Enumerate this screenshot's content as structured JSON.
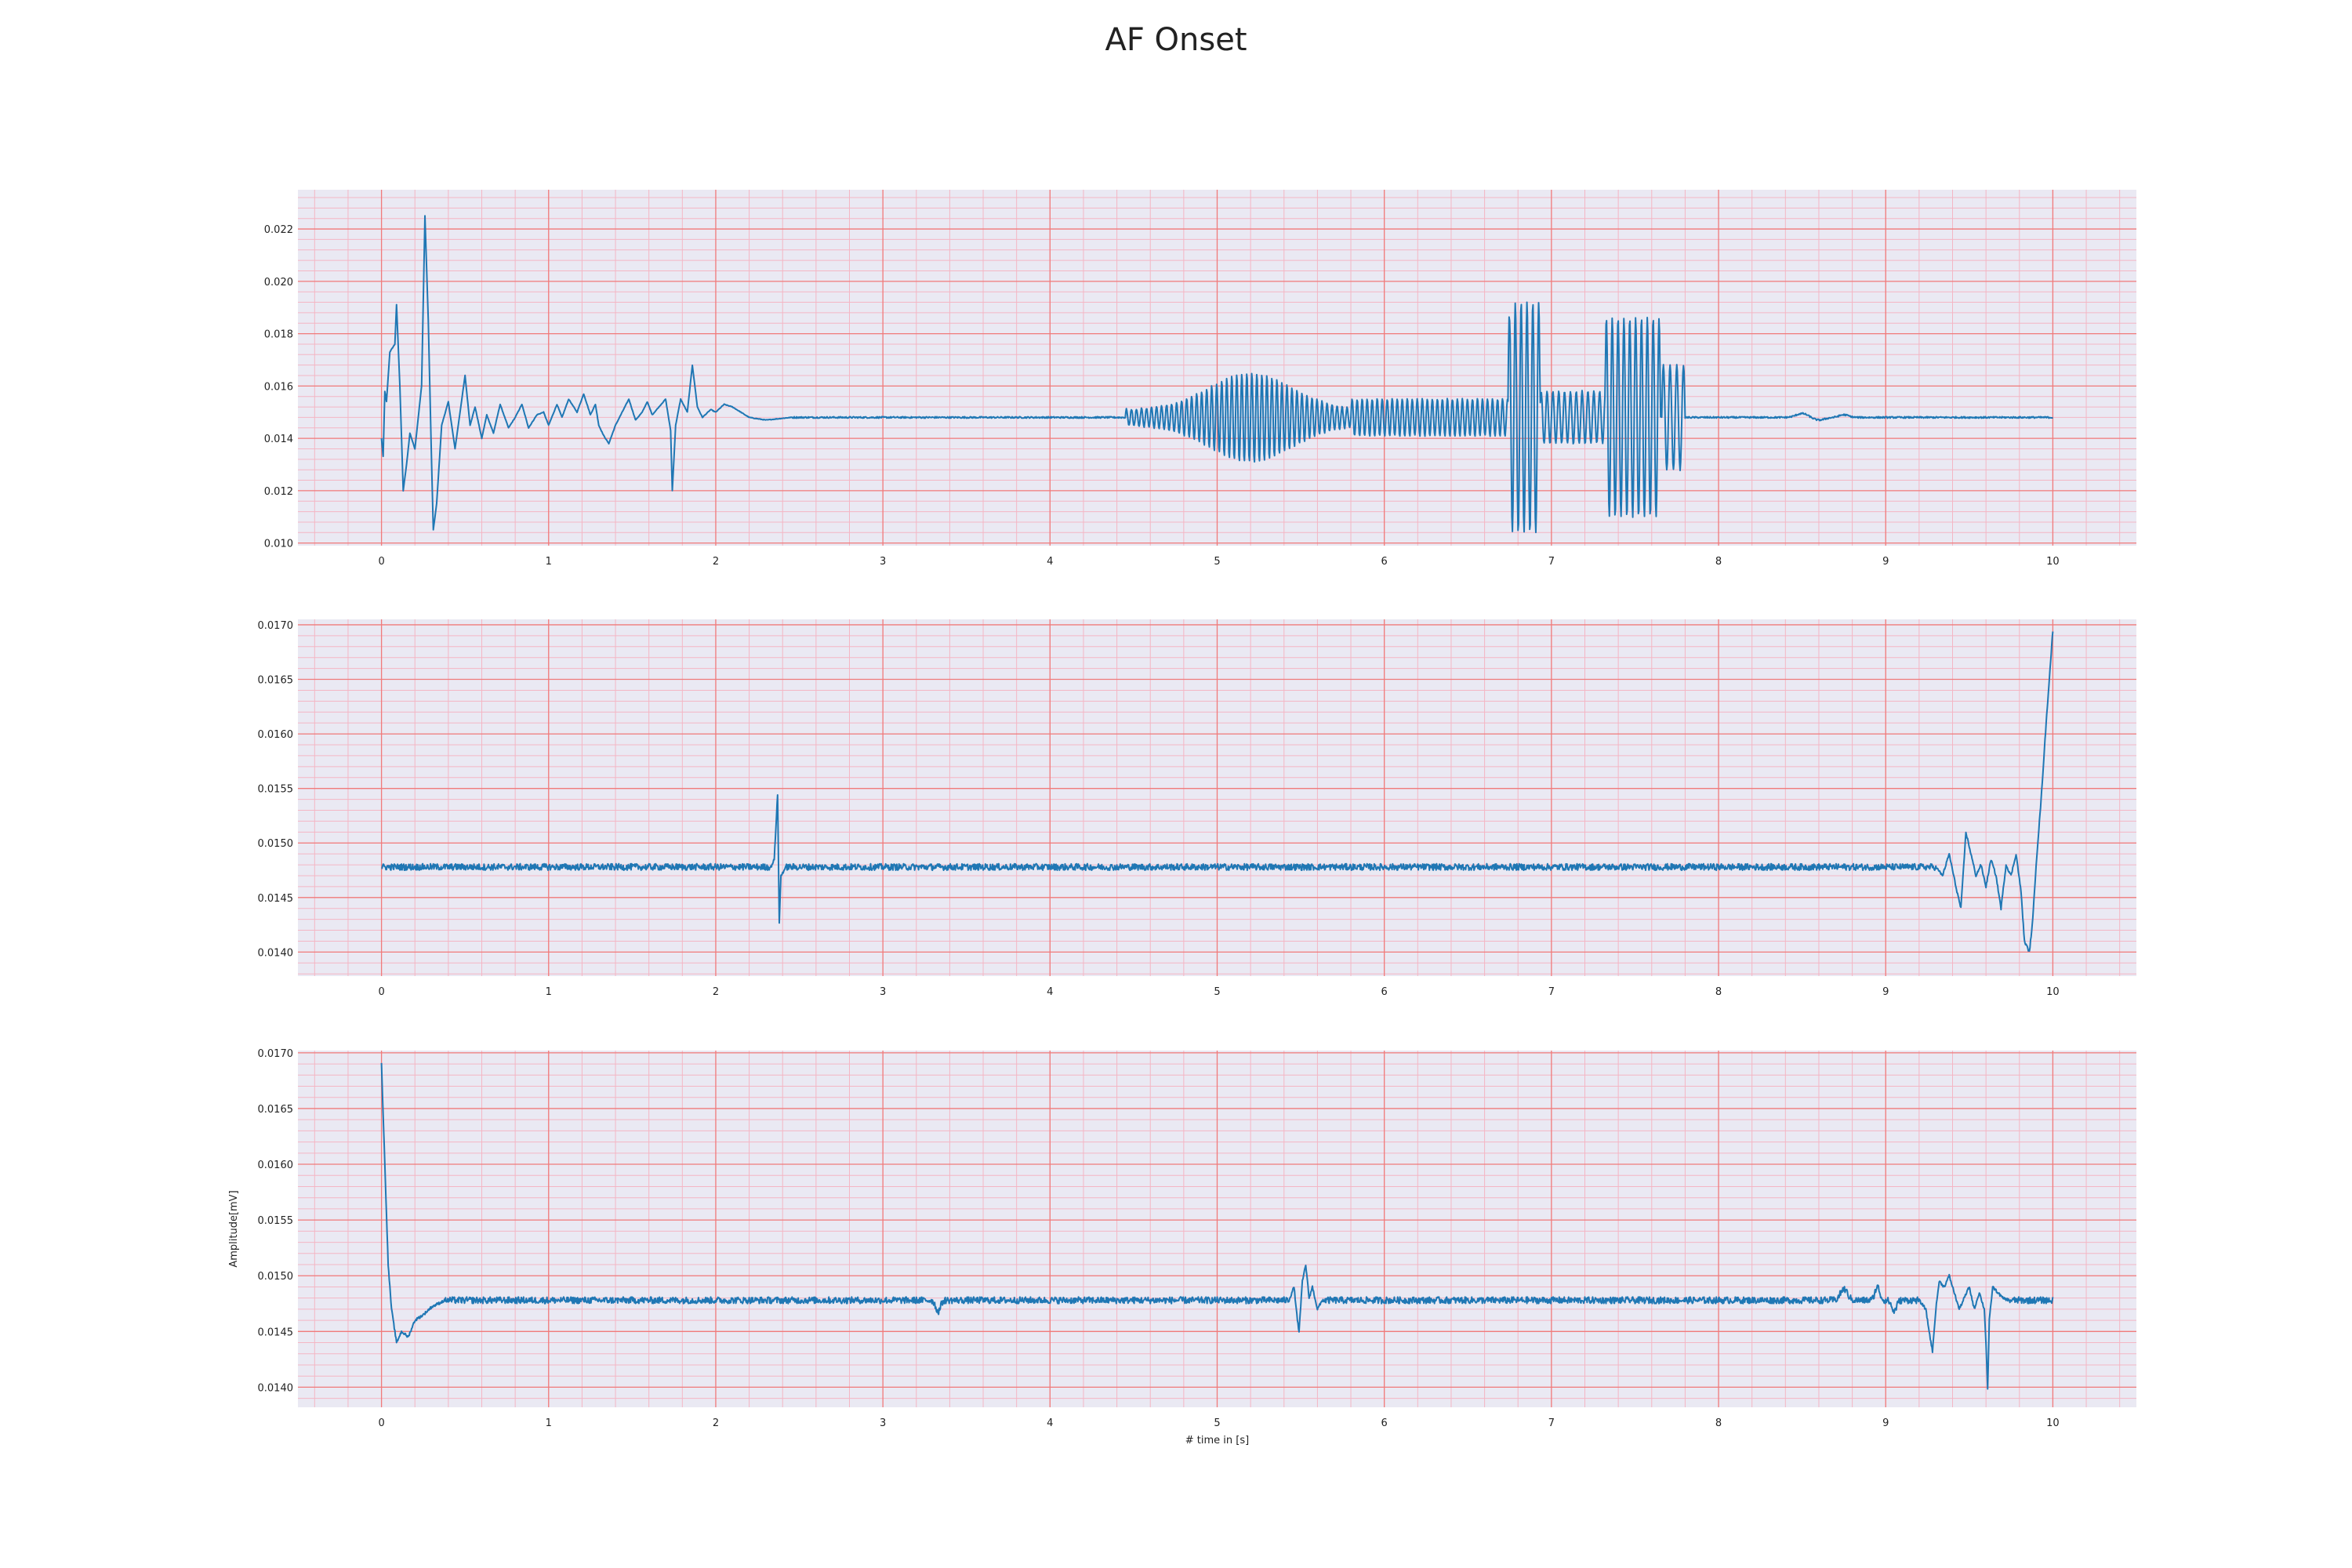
{
  "figure": {
    "title": "AF Onset"
  },
  "colors": {
    "background": "#eae9f3",
    "major_grid": "#f07b7b",
    "minor_grid": "#f4b6c4",
    "line": "#1f77b4"
  },
  "chart_data": [
    {
      "type": "line",
      "xlabel": "",
      "ylabel": "",
      "xlim": [
        -0.5,
        10.5
      ],
      "ylim": [
        0.0099,
        0.0235
      ],
      "xticks": [
        "0",
        "1",
        "2",
        "3",
        "4",
        "5",
        "6",
        "7",
        "8",
        "9",
        "10"
      ],
      "yticks": [
        "0.010",
        "0.012",
        "0.014",
        "0.016",
        "0.018",
        "0.020",
        "0.022"
      ],
      "grid": true,
      "baseline": 0.0148,
      "noise": 3e-05,
      "x_end": 10,
      "events": [
        {
          "k": "pts",
          "pts": [
            [
              0,
              0.014
            ],
            [
              0.01,
              0.0133
            ],
            [
              0.02,
              0.0158
            ],
            [
              0.03,
              0.0154
            ],
            [
              0.05,
              0.0173
            ],
            [
              0.08,
              0.0176
            ],
            [
              0.09,
              0.0191
            ],
            [
              0.11,
              0.016
            ],
            [
              0.13,
              0.012
            ],
            [
              0.15,
              0.013
            ],
            [
              0.17,
              0.0142
            ],
            [
              0.2,
              0.0136
            ],
            [
              0.24,
              0.016
            ],
            [
              0.26,
              0.0225
            ],
            [
              0.28,
              0.0185
            ],
            [
              0.3,
              0.013
            ],
            [
              0.31,
              0.0105
            ],
            [
              0.33,
              0.0115
            ],
            [
              0.36,
              0.0145
            ],
            [
              0.4,
              0.0154
            ],
            [
              0.44,
              0.0136
            ],
            [
              0.47,
              0.015
            ],
            [
              0.5,
              0.0164
            ],
            [
              0.53,
              0.0145
            ],
            [
              0.56,
              0.0152
            ],
            [
              0.6,
              0.014
            ],
            [
              0.63,
              0.0149
            ],
            [
              0.67,
              0.0142
            ],
            [
              0.71,
              0.0153
            ],
            [
              0.76,
              0.0144
            ],
            [
              0.8,
              0.0148
            ],
            [
              0.84,
              0.0153
            ],
            [
              0.88,
              0.0144
            ],
            [
              0.93,
              0.0149
            ],
            [
              0.97,
              0.015
            ],
            [
              1.0,
              0.0145
            ],
            [
              1.05,
              0.0153
            ],
            [
              1.08,
              0.0148
            ],
            [
              1.12,
              0.0155
            ],
            [
              1.17,
              0.015
            ],
            [
              1.21,
              0.0157
            ],
            [
              1.25,
              0.0149
            ],
            [
              1.28,
              0.0153
            ],
            [
              1.3,
              0.0145
            ],
            [
              1.33,
              0.0141
            ],
            [
              1.36,
              0.0138
            ],
            [
              1.4,
              0.0145
            ],
            [
              1.44,
              0.015
            ],
            [
              1.48,
              0.0155
            ],
            [
              1.52,
              0.0147
            ],
            [
              1.56,
              0.015
            ],
            [
              1.59,
              0.0154
            ],
            [
              1.62,
              0.0149
            ],
            [
              1.66,
              0.0152
            ],
            [
              1.7,
              0.0155
            ],
            [
              1.73,
              0.0143
            ],
            [
              1.74,
              0.012
            ],
            [
              1.76,
              0.0145
            ],
            [
              1.79,
              0.0155
            ],
            [
              1.83,
              0.015
            ],
            [
              1.86,
              0.0168
            ],
            [
              1.89,
              0.0152
            ],
            [
              1.92,
              0.0148
            ],
            [
              1.97,
              0.0151
            ],
            [
              2.0,
              0.015
            ],
            [
              2.05,
              0.0153
            ],
            [
              2.1,
              0.0152
            ],
            [
              2.15,
              0.015
            ],
            [
              2.2,
              0.0148
            ],
            [
              2.3,
              0.0147
            ],
            [
              2.45,
              0.0148
            ]
          ]
        },
        {
          "k": "osc",
          "s": 4.45,
          "e": 5.8,
          "p": 0.03,
          "a": 0.0003,
          "env": "bulge",
          "c": 5.2,
          "w": 0.35,
          "a2": 0.0014
        },
        {
          "k": "osc",
          "s": 5.8,
          "e": 6.75,
          "p": 0.03,
          "a": 0.0007
        },
        {
          "k": "osc",
          "s": 6.74,
          "e": 6.93,
          "p": 0.035,
          "a": 0.0044
        },
        {
          "k": "osc",
          "s": 6.93,
          "e": 7.32,
          "p": 0.035,
          "a": 0.001
        },
        {
          "k": "osc",
          "s": 7.32,
          "e": 7.65,
          "p": 0.035,
          "a": 0.0038
        },
        {
          "k": "osc",
          "s": 7.66,
          "e": 7.8,
          "p": 0.04,
          "a": 0.002
        },
        {
          "k": "bump",
          "c": 8.5,
          "a": 0.00015,
          "w": 0.05
        },
        {
          "k": "bump",
          "c": 8.6,
          "a": -0.0001,
          "w": 0.05
        },
        {
          "k": "bump",
          "c": 8.75,
          "a": 0.0001,
          "w": 0.04
        }
      ]
    },
    {
      "type": "line",
      "xlabel": "",
      "ylabel": "",
      "xlim": [
        -0.5,
        10.5
      ],
      "ylim": [
        0.01378,
        0.01705
      ],
      "xticks": [
        "0",
        "1",
        "2",
        "3",
        "4",
        "5",
        "6",
        "7",
        "8",
        "9",
        "10"
      ],
      "yticks": [
        "0.0140",
        "0.0145",
        "0.0150",
        "0.0155",
        "0.0160",
        "0.0165",
        "0.0170"
      ],
      "grid": true,
      "baseline": 0.01478,
      "noise": 3e-05,
      "x_end": 10,
      "events": [
        {
          "k": "pts",
          "pts": [
            [
              2.33,
              0.01478
            ],
            [
              2.35,
              0.01485
            ],
            [
              2.37,
              0.01545
            ],
            [
              2.38,
              0.01427
            ],
            [
              2.39,
              0.0147
            ],
            [
              2.42,
              0.01478
            ]
          ]
        },
        {
          "k": "pts",
          "pts": [
            [
              9.3,
              0.01478
            ],
            [
              9.34,
              0.0147
            ],
            [
              9.38,
              0.0149
            ],
            [
              9.42,
              0.0146
            ],
            [
              9.45,
              0.0144
            ],
            [
              9.48,
              0.0151
            ],
            [
              9.51,
              0.0149
            ],
            [
              9.54,
              0.0147
            ],
            [
              9.57,
              0.0148
            ],
            [
              9.6,
              0.0146
            ],
            [
              9.63,
              0.01485
            ],
            [
              9.66,
              0.0147
            ],
            [
              9.69,
              0.0144
            ],
            [
              9.72,
              0.0148
            ],
            [
              9.75,
              0.0147
            ],
            [
              9.78,
              0.0149
            ],
            [
              9.81,
              0.01455
            ],
            [
              9.83,
              0.0141
            ],
            [
              9.86,
              0.014
            ],
            [
              9.88,
              0.0143
            ],
            [
              9.9,
              0.0148
            ],
            [
              9.93,
              0.0154
            ],
            [
              9.96,
              0.0161
            ],
            [
              10.0,
              0.01695
            ]
          ]
        }
      ]
    },
    {
      "type": "line",
      "xlabel": "# time in [s]",
      "ylabel": "Amplitude[mV]",
      "xlim": [
        -0.5,
        10.5
      ],
      "ylim": [
        0.01382,
        0.01702
      ],
      "xticks": [
        "0",
        "1",
        "2",
        "3",
        "4",
        "5",
        "6",
        "7",
        "8",
        "9",
        "10"
      ],
      "yticks": [
        "0.0140",
        "0.0145",
        "0.0150",
        "0.0155",
        "0.0160",
        "0.0165",
        "0.0170"
      ],
      "grid": true,
      "baseline": 0.01478,
      "noise": 3e-05,
      "x_end": 10,
      "events": [
        {
          "k": "pts",
          "pts": [
            [
              0,
              0.0169
            ],
            [
              0.02,
              0.016
            ],
            [
              0.04,
              0.0151
            ],
            [
              0.06,
              0.0147
            ],
            [
              0.09,
              0.0144
            ],
            [
              0.12,
              0.0145
            ],
            [
              0.16,
              0.01445
            ],
            [
              0.2,
              0.0146
            ],
            [
              0.25,
              0.01465
            ],
            [
              0.3,
              0.01472
            ],
            [
              0.38,
              0.01478
            ]
          ]
        },
        {
          "k": "pts",
          "pts": [
            [
              5.43,
              0.01478
            ],
            [
              5.46,
              0.0149
            ],
            [
              5.48,
              0.0146
            ],
            [
              5.49,
              0.0145
            ],
            [
              5.51,
              0.01495
            ],
            [
              5.53,
              0.0151
            ],
            [
              5.55,
              0.0148
            ],
            [
              5.57,
              0.0149
            ],
            [
              5.6,
              0.0147
            ],
            [
              5.63,
              0.01478
            ]
          ]
        },
        {
          "k": "pts",
          "pts": [
            [
              9.2,
              0.01478
            ],
            [
              9.24,
              0.0147
            ],
            [
              9.26,
              0.0145
            ],
            [
              9.28,
              0.01432
            ],
            [
              9.3,
              0.0147
            ],
            [
              9.32,
              0.01495
            ],
            [
              9.35,
              0.0149
            ],
            [
              9.38,
              0.015
            ],
            [
              9.41,
              0.01485
            ],
            [
              9.44,
              0.0147
            ],
            [
              9.47,
              0.0148
            ],
            [
              9.5,
              0.0149
            ],
            [
              9.53,
              0.0147
            ],
            [
              9.56,
              0.01485
            ],
            [
              9.59,
              0.0147
            ],
            [
              9.6,
              0.0144
            ],
            [
              9.61,
              0.01398
            ],
            [
              9.62,
              0.0146
            ],
            [
              9.64,
              0.0149
            ],
            [
              9.67,
              0.01485
            ],
            [
              9.7,
              0.0148
            ],
            [
              9.74,
              0.01478
            ]
          ]
        },
        {
          "k": "bump",
          "c": 3.33,
          "a": -0.0001,
          "w": 0.02
        },
        {
          "k": "bump",
          "c": 8.75,
          "a": 0.0001,
          "w": 0.03
        },
        {
          "k": "bump",
          "c": 8.95,
          "a": 0.00012,
          "w": 0.02
        },
        {
          "k": "bump",
          "c": 9.05,
          "a": -0.0001,
          "w": 0.02
        }
      ]
    }
  ]
}
